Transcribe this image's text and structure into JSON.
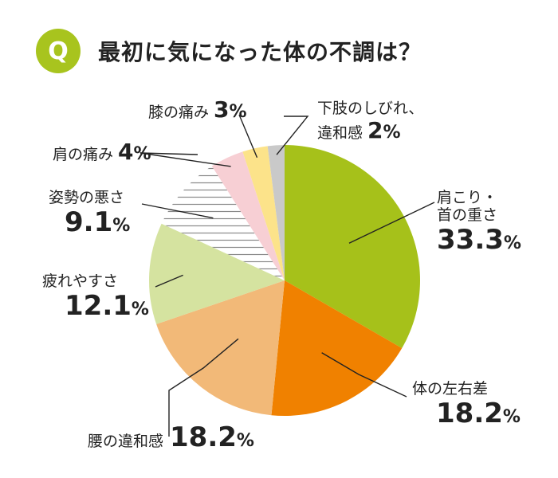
{
  "header": {
    "badge": "Q",
    "title": "最初に気になった体の不調は？"
  },
  "colors": {
    "badge": "#a8c41e",
    "slices": [
      "#a6c11a",
      "#f08100",
      "#f2b978",
      "#d5e3a0",
      "#ffffff",
      "#f7cfd4",
      "#fce38a",
      "#c9c9c9"
    ],
    "stripe": "#888888",
    "leader": "#222222"
  },
  "chart_data": {
    "type": "pie",
    "title": "最初に気になった体の不調は？",
    "unit": "%",
    "start": "12 o'clock",
    "direction": "clockwise",
    "slices": [
      {
        "label": "肩こり・首の重さ",
        "label_lines": [
          "肩こり・",
          "首の重さ"
        ],
        "value": 33.3
      },
      {
        "label": "体の左右差",
        "label_lines": [
          "体の左右差"
        ],
        "value": 18.2
      },
      {
        "label": "腰の違和感",
        "label_lines": [
          "腰の違和感"
        ],
        "value": 18.2
      },
      {
        "label": "疲れやすさ",
        "label_lines": [
          "疲れやすさ"
        ],
        "value": 12.1
      },
      {
        "label": "姿勢の悪さ",
        "label_lines": [
          "姿勢の悪さ"
        ],
        "value": 9.1,
        "pattern": "horizontal-stripes"
      },
      {
        "label": "肩の痛み",
        "label_lines": [
          "肩の痛み"
        ],
        "value": 4
      },
      {
        "label": "膝の痛み",
        "label_lines": [
          "膝の痛み"
        ],
        "value": 3
      },
      {
        "label": "下肢のしびれ、違和感",
        "label_lines": [
          "下肢のしびれ、",
          "違和感"
        ],
        "value": 2
      }
    ]
  }
}
